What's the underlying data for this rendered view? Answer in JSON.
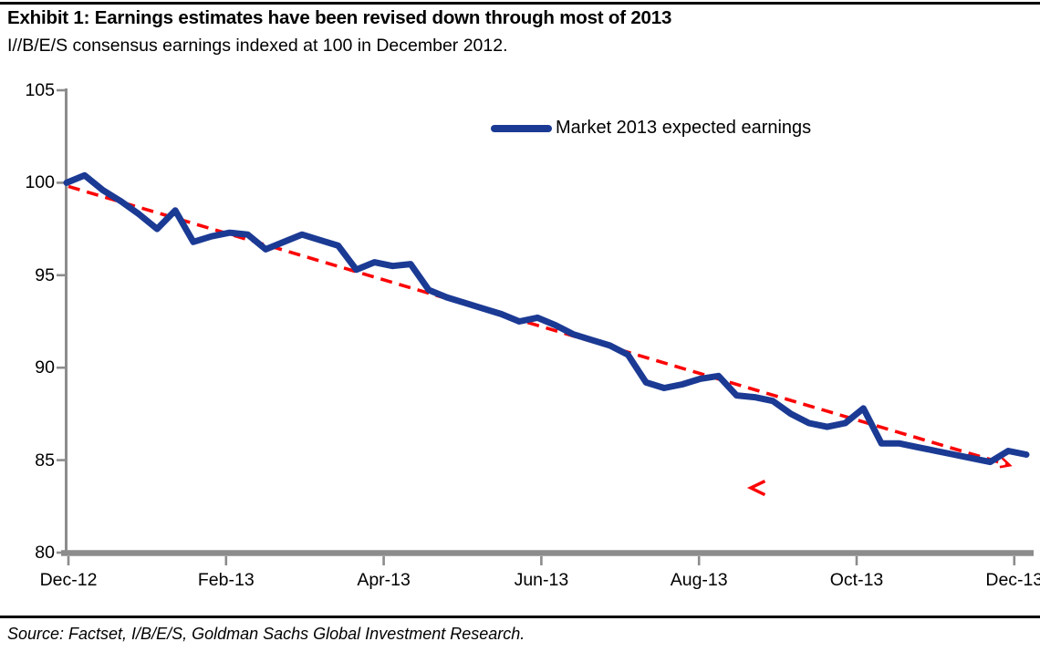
{
  "header": {
    "title": "Exhibit 1: Earnings estimates have been revised down through most of 2013",
    "subtitle": "I//B/E/S consensus earnings indexed at 100 in December 2012."
  },
  "footer": {
    "source": "Source: Factset, I/B/E/S, Goldman Sachs Global Investment Research."
  },
  "colors": {
    "series_blue": "#1b3a94",
    "trend_red": "#fb0505",
    "axis_gray": "#8c8c8c",
    "text_black": "#000000"
  },
  "chart_data": {
    "type": "line",
    "title": "Exhibit 1: Earnings estimates have been revised down through most of 2013",
    "subtitle": "I//B/E/S consensus earnings indexed at 100 in December 2012.",
    "xlabel": "",
    "ylabel": "",
    "ylim": [
      80,
      105
    ],
    "grid": false,
    "legend_position": "top-center-inside",
    "x_tick_labels": [
      "Dec-12",
      "Feb-13",
      "Apr-13",
      "Jun-13",
      "Aug-13",
      "Oct-13",
      "Dec-13"
    ],
    "y_tick_values": [
      105,
      100,
      95,
      90,
      85,
      80
    ],
    "x_frequency": "weekly, Dec-2012 through Dec-2013",
    "series": [
      {
        "name": "Market 2013 expected earnings",
        "color": "#1b3a94",
        "values": [
          100.0,
          100.4,
          99.6,
          99.0,
          98.3,
          97.5,
          98.5,
          96.8,
          97.1,
          97.3,
          97.2,
          96.4,
          96.8,
          97.2,
          96.9,
          96.6,
          95.3,
          95.7,
          95.5,
          95.6,
          94.2,
          93.8,
          93.5,
          93.2,
          92.9,
          92.5,
          92.7,
          92.3,
          91.8,
          91.5,
          91.2,
          90.7,
          89.2,
          88.9,
          89.1,
          89.4,
          89.55,
          88.5,
          88.4,
          88.2,
          87.5,
          87.0,
          86.8,
          87.0,
          87.8,
          85.9,
          85.9,
          85.7,
          85.5,
          85.3,
          85.1,
          84.9,
          85.5,
          85.3
        ]
      }
    ],
    "trendline": {
      "style": "dashed",
      "color": "#fb0505",
      "start_value": 99.8,
      "end_value": 84.75,
      "arrowhead_at_end": true
    },
    "stray_marker": {
      "glyph": "<",
      "color": "#fb0505",
      "approx_value": 83.5,
      "approx_x_fraction": 0.72
    }
  }
}
